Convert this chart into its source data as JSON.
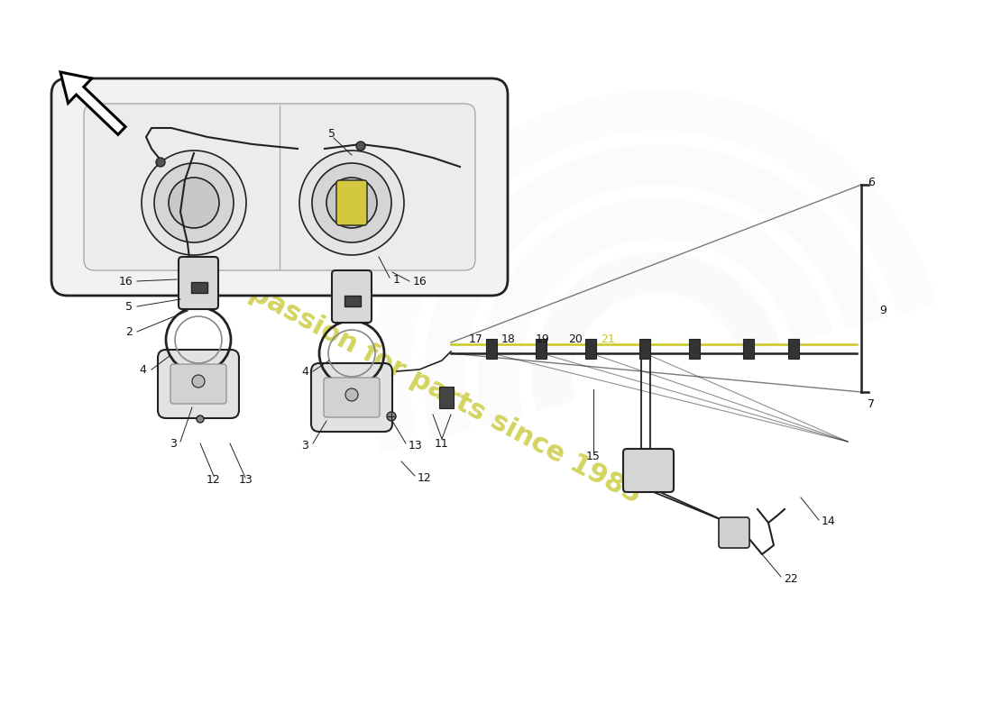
{
  "background_color": "#ffffff",
  "watermark_text": "a passion for parts since 1985",
  "watermark_color": "#d4d460",
  "lines_color": "#222222",
  "yellow_line_color": "#c8c820",
  "label_color": "#111111",
  "label_fontsize": 9,
  "part_numbers": [
    "1",
    "2",
    "3",
    "4",
    "5",
    "6",
    "7",
    "9",
    "11",
    "12",
    "13",
    "14",
    "15",
    "16",
    "17",
    "18",
    "19",
    "20",
    "21",
    "22"
  ]
}
